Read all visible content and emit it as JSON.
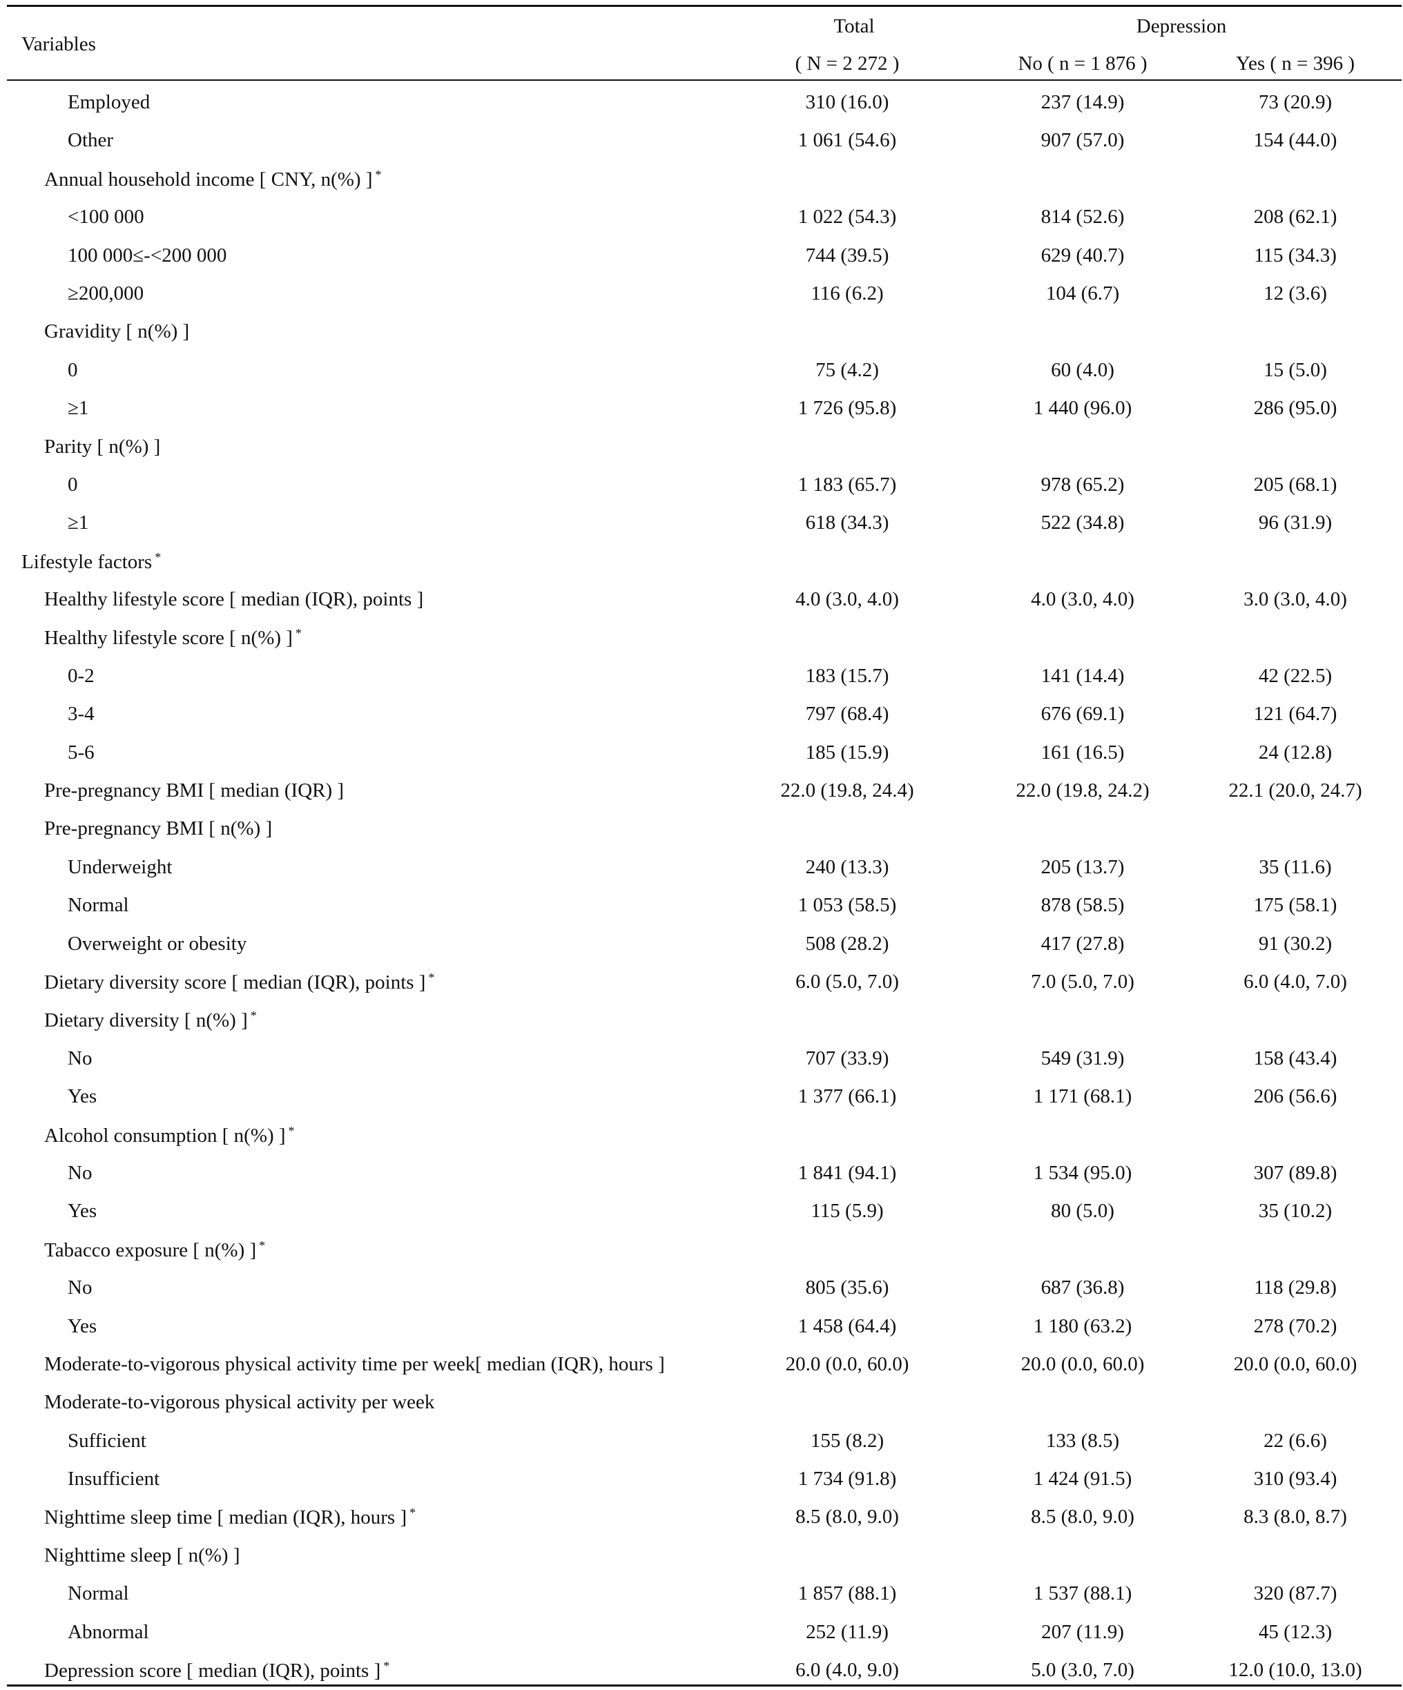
{
  "header": {
    "variables": "Variables",
    "total": "Total",
    "total_n": "( N = 2 272 )",
    "depression": "Depression",
    "no": "No ( n = 1 876 )",
    "yes": "Yes ( n = 396 )"
  },
  "rows": [
    {
      "label": "Employed",
      "level": 2,
      "total": "310 (16.0)",
      "no": "237 (14.9)",
      "yes": "73 (20.9)"
    },
    {
      "label": "Other",
      "level": 2,
      "total": "1 061 (54.6)",
      "no": "907 (57.0)",
      "yes": "154 (44.0)"
    },
    {
      "label": "Annual household income [ CNY, n(%) ]",
      "sup": "*",
      "level": 1
    },
    {
      "label": "<100 000",
      "level": 2,
      "total": "1 022 (54.3)",
      "no": "814 (52.6)",
      "yes": "208 (62.1)"
    },
    {
      "label": "100 000≤-<200 000",
      "level": 2,
      "total": "744 (39.5)",
      "no": "629 (40.7)",
      "yes": "115 (34.3)"
    },
    {
      "label": "≥200,000",
      "level": 2,
      "total": "116 (6.2)",
      "no": "104 (6.7)",
      "yes": "12 (3.6)"
    },
    {
      "label": "Gravidity [ n(%) ]",
      "level": 1
    },
    {
      "label": "0",
      "level": 2,
      "total": "75 (4.2)",
      "no": "60 (4.0)",
      "yes": "15 (5.0)"
    },
    {
      "label": "≥1",
      "level": 2,
      "total": "1 726 (95.8)",
      "no": "1 440 (96.0)",
      "yes": "286 (95.0)"
    },
    {
      "label": "Parity [ n(%) ]",
      "level": 1
    },
    {
      "label": "0",
      "level": 2,
      "total": "1 183 (65.7)",
      "no": "978 (65.2)",
      "yes": "205 (68.1)"
    },
    {
      "label": "≥1",
      "level": 2,
      "total": "618 (34.3)",
      "no": "522 (34.8)",
      "yes": "96 (31.9)"
    },
    {
      "label": "Lifestyle factors",
      "sup": "*",
      "level": 0
    },
    {
      "label": "Healthy lifestyle score [ median (IQR), points ]",
      "level": 1,
      "total": "4.0 (3.0, 4.0)",
      "no": "4.0 (3.0, 4.0)",
      "yes": "3.0 (3.0, 4.0)"
    },
    {
      "label": "Healthy lifestyle score [ n(%) ]",
      "sup": "*",
      "level": 1
    },
    {
      "label": "0-2",
      "level": 2,
      "total": "183 (15.7)",
      "no": "141 (14.4)",
      "yes": "42 (22.5)"
    },
    {
      "label": "3-4",
      "level": 2,
      "total": "797 (68.4)",
      "no": "676 (69.1)",
      "yes": "121 (64.7)"
    },
    {
      "label": "5-6",
      "level": 2,
      "total": "185 (15.9)",
      "no": "161 (16.5)",
      "yes": "24 (12.8)"
    },
    {
      "label": "Pre-pregnancy BMI [ median (IQR) ]",
      "level": 1,
      "total": "22.0 (19.8, 24.4)",
      "no": "22.0 (19.8, 24.2)",
      "yes": "22.1 (20.0, 24.7)"
    },
    {
      "label": "Pre-pregnancy BMI [ n(%) ]",
      "level": 1
    },
    {
      "label": "Underweight",
      "level": 2,
      "total": "240 (13.3)",
      "no": "205 (13.7)",
      "yes": "35 (11.6)"
    },
    {
      "label": "Normal",
      "level": 2,
      "total": "1 053 (58.5)",
      "no": "878 (58.5)",
      "yes": "175 (58.1)"
    },
    {
      "label": "Overweight or obesity",
      "level": 2,
      "total": "508 (28.2)",
      "no": "417 (27.8)",
      "yes": "91 (30.2)"
    },
    {
      "label": "Dietary diversity score [ median (IQR), points ]",
      "sup": "*",
      "level": 1,
      "total": "6.0 (5.0, 7.0)",
      "no": "7.0 (5.0, 7.0)",
      "yes": "6.0 (4.0, 7.0)"
    },
    {
      "label": "Dietary diversity [ n(%) ]",
      "sup": "*",
      "level": 1
    },
    {
      "label": "No",
      "level": 2,
      "total": "707 (33.9)",
      "no": "549 (31.9)",
      "yes": "158 (43.4)"
    },
    {
      "label": "Yes",
      "level": 2,
      "total": "1 377 (66.1)",
      "no": "1 171 (68.1)",
      "yes": "206 (56.6)"
    },
    {
      "label": "Alcohol consumption [ n(%) ]",
      "sup": "*",
      "level": 1
    },
    {
      "label": "No",
      "level": 2,
      "total": "1 841 (94.1)",
      "no": "1 534 (95.0)",
      "yes": "307 (89.8)"
    },
    {
      "label": "Yes",
      "level": 2,
      "total": "115 (5.9)",
      "no": "80 (5.0)",
      "yes": "35 (10.2)"
    },
    {
      "label": "Tabacco exposure [ n(%) ]",
      "sup": "*",
      "level": 1
    },
    {
      "label": "No",
      "level": 2,
      "total": "805 (35.6)",
      "no": "687 (36.8)",
      "yes": "118 (29.8)"
    },
    {
      "label": "Yes",
      "level": 2,
      "total": "1 458 (64.4)",
      "no": "1 180 (63.2)",
      "yes": "278 (70.2)"
    },
    {
      "label": "Moderate-to-vigorous physical activity time per week[ median (IQR), hours ]",
      "level": 1,
      "total": "20.0 (0.0, 60.0)",
      "no": "20.0 (0.0, 60.0)",
      "yes": "20.0 (0.0, 60.0)"
    },
    {
      "label": "Moderate-to-vigorous physical activity per week",
      "level": 1
    },
    {
      "label": "Sufficient",
      "level": 2,
      "total": "155 (8.2)",
      "no": "133 (8.5)",
      "yes": "22 (6.6)"
    },
    {
      "label": "Insufficient",
      "level": 2,
      "total": "1 734 (91.8)",
      "no": "1 424 (91.5)",
      "yes": "310 (93.4)"
    },
    {
      "label": "Nighttime sleep time [ median (IQR), hours ]",
      "sup": "*",
      "level": 1,
      "total": "8.5 (8.0, 9.0)",
      "no": "8.5 (8.0, 9.0)",
      "yes": "8.3 (8.0, 8.7)"
    },
    {
      "label": "Nighttime sleep [ n(%) ]",
      "level": 1
    },
    {
      "label": "Normal",
      "level": 2,
      "total": "1 857 (88.1)",
      "no": "1 537 (88.1)",
      "yes": "320 (87.7)"
    },
    {
      "label": "Abnormal",
      "level": 2,
      "total": "252 (11.9)",
      "no": "207 (11.9)",
      "yes": "45 (12.3)"
    },
    {
      "label": "Depression score [ median (IQR), points ]",
      "sup": "*",
      "level": 1,
      "total": "6.0 (4.0, 9.0)",
      "no": "5.0 (3.0, 7.0)",
      "yes": "12.0 (10.0, 13.0)"
    }
  ]
}
